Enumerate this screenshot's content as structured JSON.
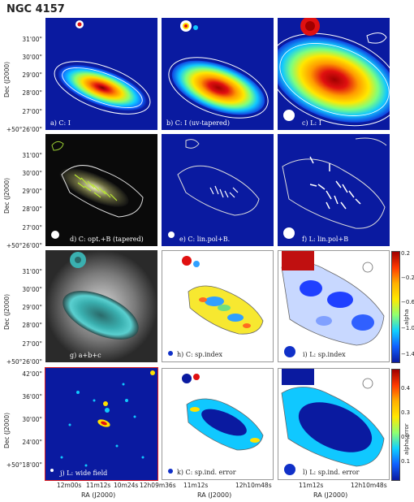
{
  "figure": {
    "title": "NGC 4157",
    "panels": [
      {
        "id": "a",
        "label": "a) C: I"
      },
      {
        "id": "b",
        "label": "b) C: I (uv-tapered)"
      },
      {
        "id": "c",
        "label": "c) L: I"
      },
      {
        "id": "d",
        "label": "d) C: opt.+B (tapered)"
      },
      {
        "id": "e",
        "label": "e) C: lin.pol+B."
      },
      {
        "id": "f",
        "label": "f) L: lin.pol+B"
      },
      {
        "id": "g",
        "label": "g)    a+b+c"
      },
      {
        "id": "h",
        "label": "h) C: sp.index"
      },
      {
        "id": "i",
        "label": "i) L: sp.index"
      },
      {
        "id": "j",
        "label": "j) L: wide field"
      },
      {
        "id": "k",
        "label": "k) C: sp.ind. error"
      },
      {
        "id": "l",
        "label": "l) L: sp.ind. error"
      }
    ],
    "y_axis": {
      "label": "Dec (J2000)",
      "ticks_rows_1_3": [
        "31'00\"",
        "30'00\"",
        "29'00\"",
        "28'00\"",
        "27'00\"",
        "+50°26'00\""
      ],
      "ticks_row_4": [
        "42'00\"",
        "36'00\"",
        "30'00\"",
        "24'00\"",
        "+50°18'00\""
      ]
    },
    "x_axis": {
      "label": "RA (J2000)",
      "ticks_col1": [
        "12m00s",
        "11m12s",
        "10m24s",
        "12h09m36s"
      ],
      "ticks_col2": [
        "11m12s",
        "12h10m48s"
      ],
      "ticks_col3": [
        "11m12s",
        "12h10m48s"
      ]
    },
    "colorbar_alpha": {
      "label": "alpha",
      "ticks": [
        "0.2",
        "−0.2",
        "−0.6",
        "−1.0",
        "−1.4"
      ]
    },
    "colorbar_error": {
      "label": "alpha error",
      "ticks": [
        "0.4",
        "0.3",
        "0.2",
        "0.1"
      ]
    }
  }
}
